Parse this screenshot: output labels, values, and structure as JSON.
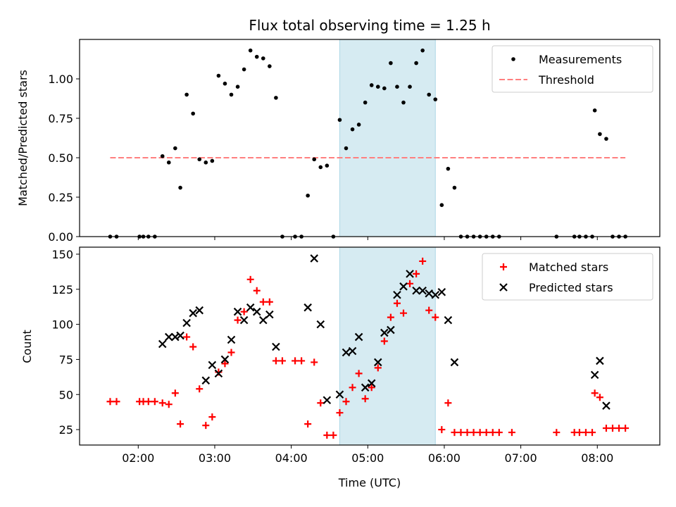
{
  "title": "Flux total observing time = 1.25 h",
  "x_label": "Time (UTC)",
  "x_ticks": [
    "02:00",
    "03:00",
    "04:00",
    "05:00",
    "06:00",
    "07:00",
    "08:00"
  ],
  "colors": {
    "shade": "#add8e6",
    "matched": "#ff0000",
    "predicted": "#000000",
    "measurement": "#000000",
    "threshold": "#ff7f7f"
  },
  "chart_data": [
    {
      "type": "scatter",
      "ylabel": "Matched/Predicted stars",
      "xlim": [
        "01:14",
        "08:49"
      ],
      "ylim": [
        0,
        1.25
      ],
      "y_ticks": [
        "0.00",
        "0.25",
        "0.50",
        "0.75",
        "1.00"
      ],
      "highlight_span": [
        "04:38",
        "05:53"
      ],
      "legend": {
        "placement": "top-right",
        "entries": [
          "Measurements",
          "Threshold"
        ]
      },
      "threshold": {
        "name": "Threshold",
        "y": 0.5,
        "x_range": [
          "01:38",
          "08:22"
        ]
      },
      "series": [
        {
          "name": "Measurements",
          "points": [
            [
              "01:38",
              0
            ],
            [
              "01:43",
              0
            ],
            [
              "02:01",
              0
            ],
            [
              "02:04",
              0
            ],
            [
              "02:08",
              0
            ],
            [
              "02:13",
              0
            ],
            [
              "02:19",
              0.51
            ],
            [
              "02:24",
              0.47
            ],
            [
              "02:29",
              0.56
            ],
            [
              "02:33",
              0.31
            ],
            [
              "02:38",
              0.9
            ],
            [
              "02:43",
              0.78
            ],
            [
              "02:48",
              0.49
            ],
            [
              "02:53",
              0.47
            ],
            [
              "02:58",
              0.48
            ],
            [
              "03:03",
              1.02
            ],
            [
              "03:08",
              0.97
            ],
            [
              "03:13",
              0.9
            ],
            [
              "03:18",
              0.95
            ],
            [
              "03:23",
              1.06
            ],
            [
              "03:28",
              1.18
            ],
            [
              "03:33",
              1.14
            ],
            [
              "03:38",
              1.13
            ],
            [
              "03:43",
              1.08
            ],
            [
              "03:48",
              0.88
            ],
            [
              "03:53",
              0
            ],
            [
              "04:03",
              0
            ],
            [
              "04:08",
              0
            ],
            [
              "04:13",
              0.26
            ],
            [
              "04:18",
              0.49
            ],
            [
              "04:23",
              0.44
            ],
            [
              "04:28",
              0.45
            ],
            [
              "04:33",
              0
            ],
            [
              "04:38",
              0.74
            ],
            [
              "04:43",
              0.56
            ],
            [
              "04:48",
              0.68
            ],
            [
              "04:53",
              0.71
            ],
            [
              "04:58",
              0.85
            ],
            [
              "05:03",
              0.96
            ],
            [
              "05:08",
              0.95
            ],
            [
              "05:13",
              0.94
            ],
            [
              "05:18",
              1.1
            ],
            [
              "05:23",
              0.95
            ],
            [
              "05:28",
              0.85
            ],
            [
              "05:33",
              0.95
            ],
            [
              "05:38",
              1.1
            ],
            [
              "05:43",
              1.18
            ],
            [
              "05:48",
              0.9
            ],
            [
              "05:53",
              0.87
            ],
            [
              "05:58",
              0.2
            ],
            [
              "06:03",
              0.43
            ],
            [
              "06:08",
              0.31
            ],
            [
              "06:13",
              0
            ],
            [
              "06:18",
              0
            ],
            [
              "06:23",
              0
            ],
            [
              "06:28",
              0
            ],
            [
              "06:33",
              0
            ],
            [
              "06:38",
              0
            ],
            [
              "06:43",
              0
            ],
            [
              "07:28",
              0
            ],
            [
              "07:42",
              0
            ],
            [
              "07:46",
              0
            ],
            [
              "07:51",
              0
            ],
            [
              "07:56",
              0
            ],
            [
              "07:58",
              0.8
            ],
            [
              "08:02",
              0.65
            ],
            [
              "08:07",
              0.62
            ],
            [
              "08:12",
              0
            ],
            [
              "08:17",
              0
            ],
            [
              "08:22",
              0
            ]
          ]
        }
      ]
    },
    {
      "type": "scatter",
      "ylabel": "Count",
      "xlabel": "Time (UTC)",
      "xlim": [
        "01:14",
        "08:49"
      ],
      "ylim": [
        14,
        155
      ],
      "y_ticks": [
        "25",
        "50",
        "75",
        "100",
        "125",
        "150"
      ],
      "highlight_span": [
        "04:38",
        "05:53"
      ],
      "legend": {
        "placement": "top-right",
        "entries": [
          "Matched stars",
          "Predicted stars"
        ]
      },
      "series": [
        {
          "name": "Matched stars",
          "points": [
            [
              "01:38",
              45
            ],
            [
              "01:43",
              45
            ],
            [
              "02:01",
              45
            ],
            [
              "02:04",
              45
            ],
            [
              "02:08",
              45
            ],
            [
              "02:13",
              45
            ],
            [
              "02:19",
              44
            ],
            [
              "02:24",
              43
            ],
            [
              "02:29",
              51
            ],
            [
              "02:33",
              29
            ],
            [
              "02:38",
              91
            ],
            [
              "02:43",
              84
            ],
            [
              "02:48",
              54
            ],
            [
              "02:53",
              28
            ],
            [
              "02:58",
              34
            ],
            [
              "03:03",
              66
            ],
            [
              "03:08",
              72
            ],
            [
              "03:13",
              80
            ],
            [
              "03:18",
              103
            ],
            [
              "03:23",
              109
            ],
            [
              "03:28",
              132
            ],
            [
              "03:33",
              124
            ],
            [
              "03:38",
              116
            ],
            [
              "03:43",
              116
            ],
            [
              "03:48",
              74
            ],
            [
              "03:53",
              74
            ],
            [
              "04:03",
              74
            ],
            [
              "04:08",
              74
            ],
            [
              "04:13",
              29
            ],
            [
              "04:18",
              73
            ],
            [
              "04:23",
              44
            ],
            [
              "04:28",
              21
            ],
            [
              "04:33",
              21
            ],
            [
              "04:38",
              37
            ],
            [
              "04:43",
              45
            ],
            [
              "04:48",
              55
            ],
            [
              "04:53",
              65
            ],
            [
              "04:58",
              47
            ],
            [
              "05:03",
              55
            ],
            [
              "05:08",
              69
            ],
            [
              "05:13",
              88
            ],
            [
              "05:18",
              105
            ],
            [
              "05:23",
              115
            ],
            [
              "05:28",
              108
            ],
            [
              "05:33",
              129
            ],
            [
              "05:38",
              136
            ],
            [
              "05:43",
              145
            ],
            [
              "05:48",
              110
            ],
            [
              "05:53",
              105
            ],
            [
              "05:58",
              25
            ],
            [
              "06:03",
              44
            ],
            [
              "06:08",
              23
            ],
            [
              "06:13",
              23
            ],
            [
              "06:18",
              23
            ],
            [
              "06:23",
              23
            ],
            [
              "06:28",
              23
            ],
            [
              "06:33",
              23
            ],
            [
              "06:38",
              23
            ],
            [
              "06:43",
              23
            ],
            [
              "06:53",
              23
            ],
            [
              "07:28",
              23
            ],
            [
              "07:42",
              23
            ],
            [
              "07:46",
              23
            ],
            [
              "07:51",
              23
            ],
            [
              "07:56",
              23
            ],
            [
              "07:58",
              51
            ],
            [
              "08:02",
              48
            ],
            [
              "08:07",
              26
            ],
            [
              "08:12",
              26
            ],
            [
              "08:17",
              26
            ],
            [
              "08:22",
              26
            ]
          ]
        },
        {
          "name": "Predicted stars",
          "points": [
            [
              "02:19",
              86
            ],
            [
              "02:24",
              91
            ],
            [
              "02:29",
              91
            ],
            [
              "02:33",
              92
            ],
            [
              "02:38",
              101
            ],
            [
              "02:43",
              108
            ],
            [
              "02:48",
              110
            ],
            [
              "02:53",
              60
            ],
            [
              "02:58",
              71
            ],
            [
              "03:03",
              65
            ],
            [
              "03:08",
              75
            ],
            [
              "03:13",
              89
            ],
            [
              "03:18",
              109
            ],
            [
              "03:23",
              103
            ],
            [
              "03:28",
              112
            ],
            [
              "03:33",
              109
            ],
            [
              "03:38",
              103
            ],
            [
              "03:43",
              107
            ],
            [
              "03:48",
              84
            ],
            [
              "04:13",
              112
            ],
            [
              "04:18",
              147
            ],
            [
              "04:23",
              100
            ],
            [
              "04:28",
              46
            ],
            [
              "04:38",
              50
            ],
            [
              "04:43",
              80
            ],
            [
              "04:48",
              81
            ],
            [
              "04:53",
              91
            ],
            [
              "04:58",
              55
            ],
            [
              "05:03",
              58
            ],
            [
              "05:08",
              73
            ],
            [
              "05:13",
              94
            ],
            [
              "05:18",
              96
            ],
            [
              "05:23",
              121
            ],
            [
              "05:28",
              127
            ],
            [
              "05:33",
              136
            ],
            [
              "05:38",
              124
            ],
            [
              "05:43",
              124
            ],
            [
              "05:48",
              122
            ],
            [
              "05:53",
              121
            ],
            [
              "05:58",
              123
            ],
            [
              "06:03",
              103
            ],
            [
              "06:08",
              73
            ],
            [
              "07:58",
              64
            ],
            [
              "08:02",
              74
            ],
            [
              "08:07",
              42
            ]
          ]
        }
      ]
    }
  ]
}
